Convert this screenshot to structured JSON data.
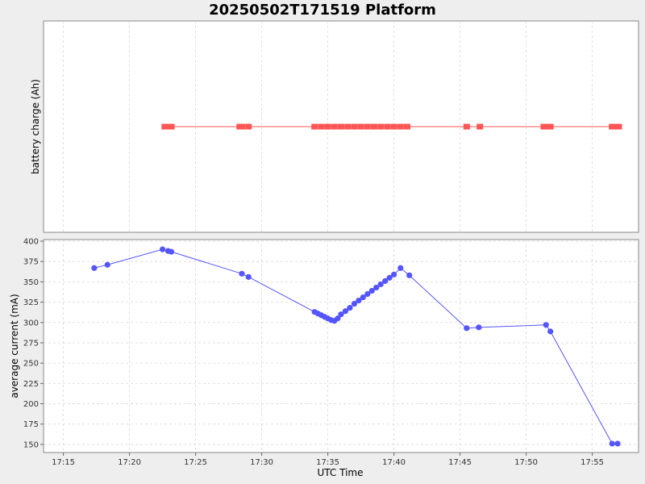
{
  "chart_data": {
    "title": "20250502T171519 Platform",
    "x_axis": {
      "label": "UTC Time",
      "ticks": [
        "17:15",
        "17:20",
        "17:25",
        "17:30",
        "17:35",
        "17:40",
        "17:45",
        "17:50",
        "17:55"
      ],
      "range": [
        "17:13:30",
        "17:58:30"
      ]
    },
    "panels": [
      {
        "type": "scatter",
        "ylabel": "battery charge (Ah)",
        "yticks": [],
        "color": "#ff5555",
        "marker": "square",
        "grid": true,
        "x": [
          "17:22:40",
          "17:22:50",
          "17:23:00",
          "17:23:10",
          "17:28:20",
          "17:28:30",
          "17:29:00",
          "17:34:00",
          "17:34:30",
          "17:35:00",
          "17:35:30",
          "17:36:00",
          "17:36:30",
          "17:37:00",
          "17:37:30",
          "17:38:00",
          "17:38:30",
          "17:39:00",
          "17:39:30",
          "17:40:00",
          "17:40:30",
          "17:41:00",
          "17:45:30",
          "17:46:30",
          "17:51:20",
          "17:51:40",
          "17:51:50",
          "17:56:30",
          "17:56:50",
          "17:57:00"
        ]
      },
      {
        "type": "line",
        "ylabel": "average current (mA)",
        "ylim": [
          140,
          402
        ],
        "yticks": [
          150,
          175,
          200,
          225,
          250,
          275,
          300,
          325,
          350,
          375,
          400
        ],
        "color": "#5555ff",
        "marker": "circle",
        "grid": true,
        "points": [
          {
            "x": "17:17:20",
            "y": 367
          },
          {
            "x": "17:18:20",
            "y": 371
          },
          {
            "x": "17:22:30",
            "y": 390
          },
          {
            "x": "17:22:55",
            "y": 388
          },
          {
            "x": "17:23:10",
            "y": 387
          },
          {
            "x": "17:28:30",
            "y": 360
          },
          {
            "x": "17:29:00",
            "y": 356
          },
          {
            "x": "17:34:00",
            "y": 313
          },
          {
            "x": "17:34:15",
            "y": 311
          },
          {
            "x": "17:34:30",
            "y": 309
          },
          {
            "x": "17:34:45",
            "y": 307
          },
          {
            "x": "17:35:00",
            "y": 305
          },
          {
            "x": "17:35:15",
            "y": 303
          },
          {
            "x": "17:35:30",
            "y": 302
          },
          {
            "x": "17:35:45",
            "y": 305
          },
          {
            "x": "17:36:00",
            "y": 310
          },
          {
            "x": "17:36:20",
            "y": 314
          },
          {
            "x": "17:36:40",
            "y": 318
          },
          {
            "x": "17:37:00",
            "y": 323
          },
          {
            "x": "17:37:20",
            "y": 327
          },
          {
            "x": "17:37:40",
            "y": 331
          },
          {
            "x": "17:38:00",
            "y": 335
          },
          {
            "x": "17:38:20",
            "y": 339
          },
          {
            "x": "17:38:40",
            "y": 343
          },
          {
            "x": "17:39:00",
            "y": 347
          },
          {
            "x": "17:39:20",
            "y": 351
          },
          {
            "x": "17:39:40",
            "y": 355
          },
          {
            "x": "17:40:00",
            "y": 359
          },
          {
            "x": "17:40:30",
            "y": 367
          },
          {
            "x": "17:41:10",
            "y": 358
          },
          {
            "x": "17:45:30",
            "y": 293
          },
          {
            "x": "17:46:25",
            "y": 294
          },
          {
            "x": "17:51:30",
            "y": 297
          },
          {
            "x": "17:51:50",
            "y": 289
          },
          {
            "x": "17:56:30",
            "y": 151
          },
          {
            "x": "17:56:55",
            "y": 151
          }
        ]
      }
    ]
  }
}
